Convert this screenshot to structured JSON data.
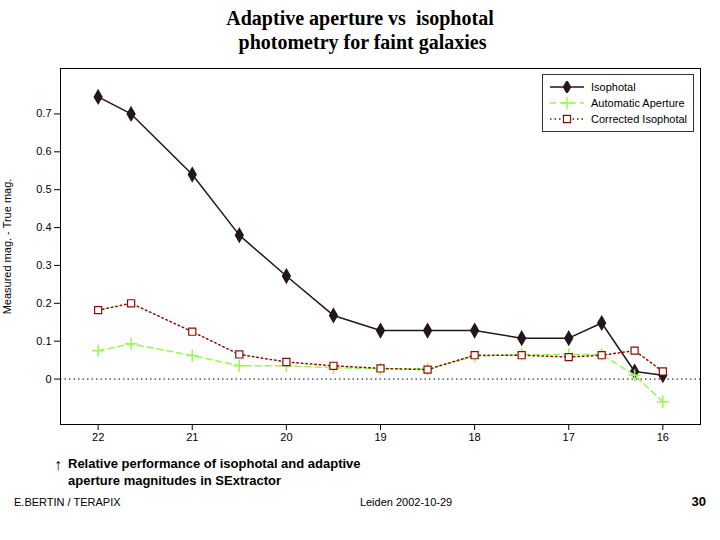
{
  "chart_data": {
    "type": "line",
    "title": [
      "Adaptive aperture vs  isophotal",
      " photometry for faint galaxies"
    ],
    "subtitle": [
      "Relative performance of isophotal and adaptive",
      "aperture magnitudes in SExtractor"
    ],
    "annotations": [
      "↑",
      "E.BERTIN / TERAPIX",
      "Leiden 2002-10-29",
      "30"
    ],
    "ylabel": "Measured mag. - True mag.",
    "x": [
      22.0,
      21.65,
      21.0,
      20.5,
      20.0,
      19.5,
      19.0,
      18.5,
      18.0,
      17.5,
      17.0,
      16.65,
      16.3,
      16.0
    ],
    "series": [
      {
        "name": "Isophotal",
        "marker": "diamond",
        "line_style": "solid",
        "values": [
          0.745,
          0.7,
          0.54,
          0.38,
          0.272,
          0.168,
          0.128,
          0.128,
          0.128,
          0.108,
          0.108,
          0.148,
          0.02,
          0.01
        ]
      },
      {
        "name": "Automatic Aperture",
        "marker": "plus",
        "line_style": "dashed",
        "values": [
          0.075,
          0.093,
          0.062,
          0.035,
          0.035,
          0.03,
          0.027,
          0.027,
          0.06,
          0.065,
          0.065,
          0.065,
          0.01,
          -0.06
        ]
      },
      {
        "name": "Corrected Isophotal",
        "marker": "square",
        "line_style": "dotted",
        "values": [
          0.182,
          0.2,
          0.125,
          0.065,
          0.045,
          0.035,
          0.028,
          0.025,
          0.063,
          0.063,
          0.058,
          0.063,
          0.075,
          0.02
        ]
      }
    ],
    "xlim": [
      22.4,
      15.6
    ],
    "xticks": [
      22,
      21,
      20,
      19,
      18,
      17,
      16
    ],
    "ylim": [
      -0.12,
      0.82
    ],
    "yticks": [
      0,
      0.1,
      0.2,
      0.3,
      0.4,
      0.5,
      0.6,
      0.7
    ],
    "reference_line": 0,
    "grid": false,
    "legend": "upper right"
  }
}
